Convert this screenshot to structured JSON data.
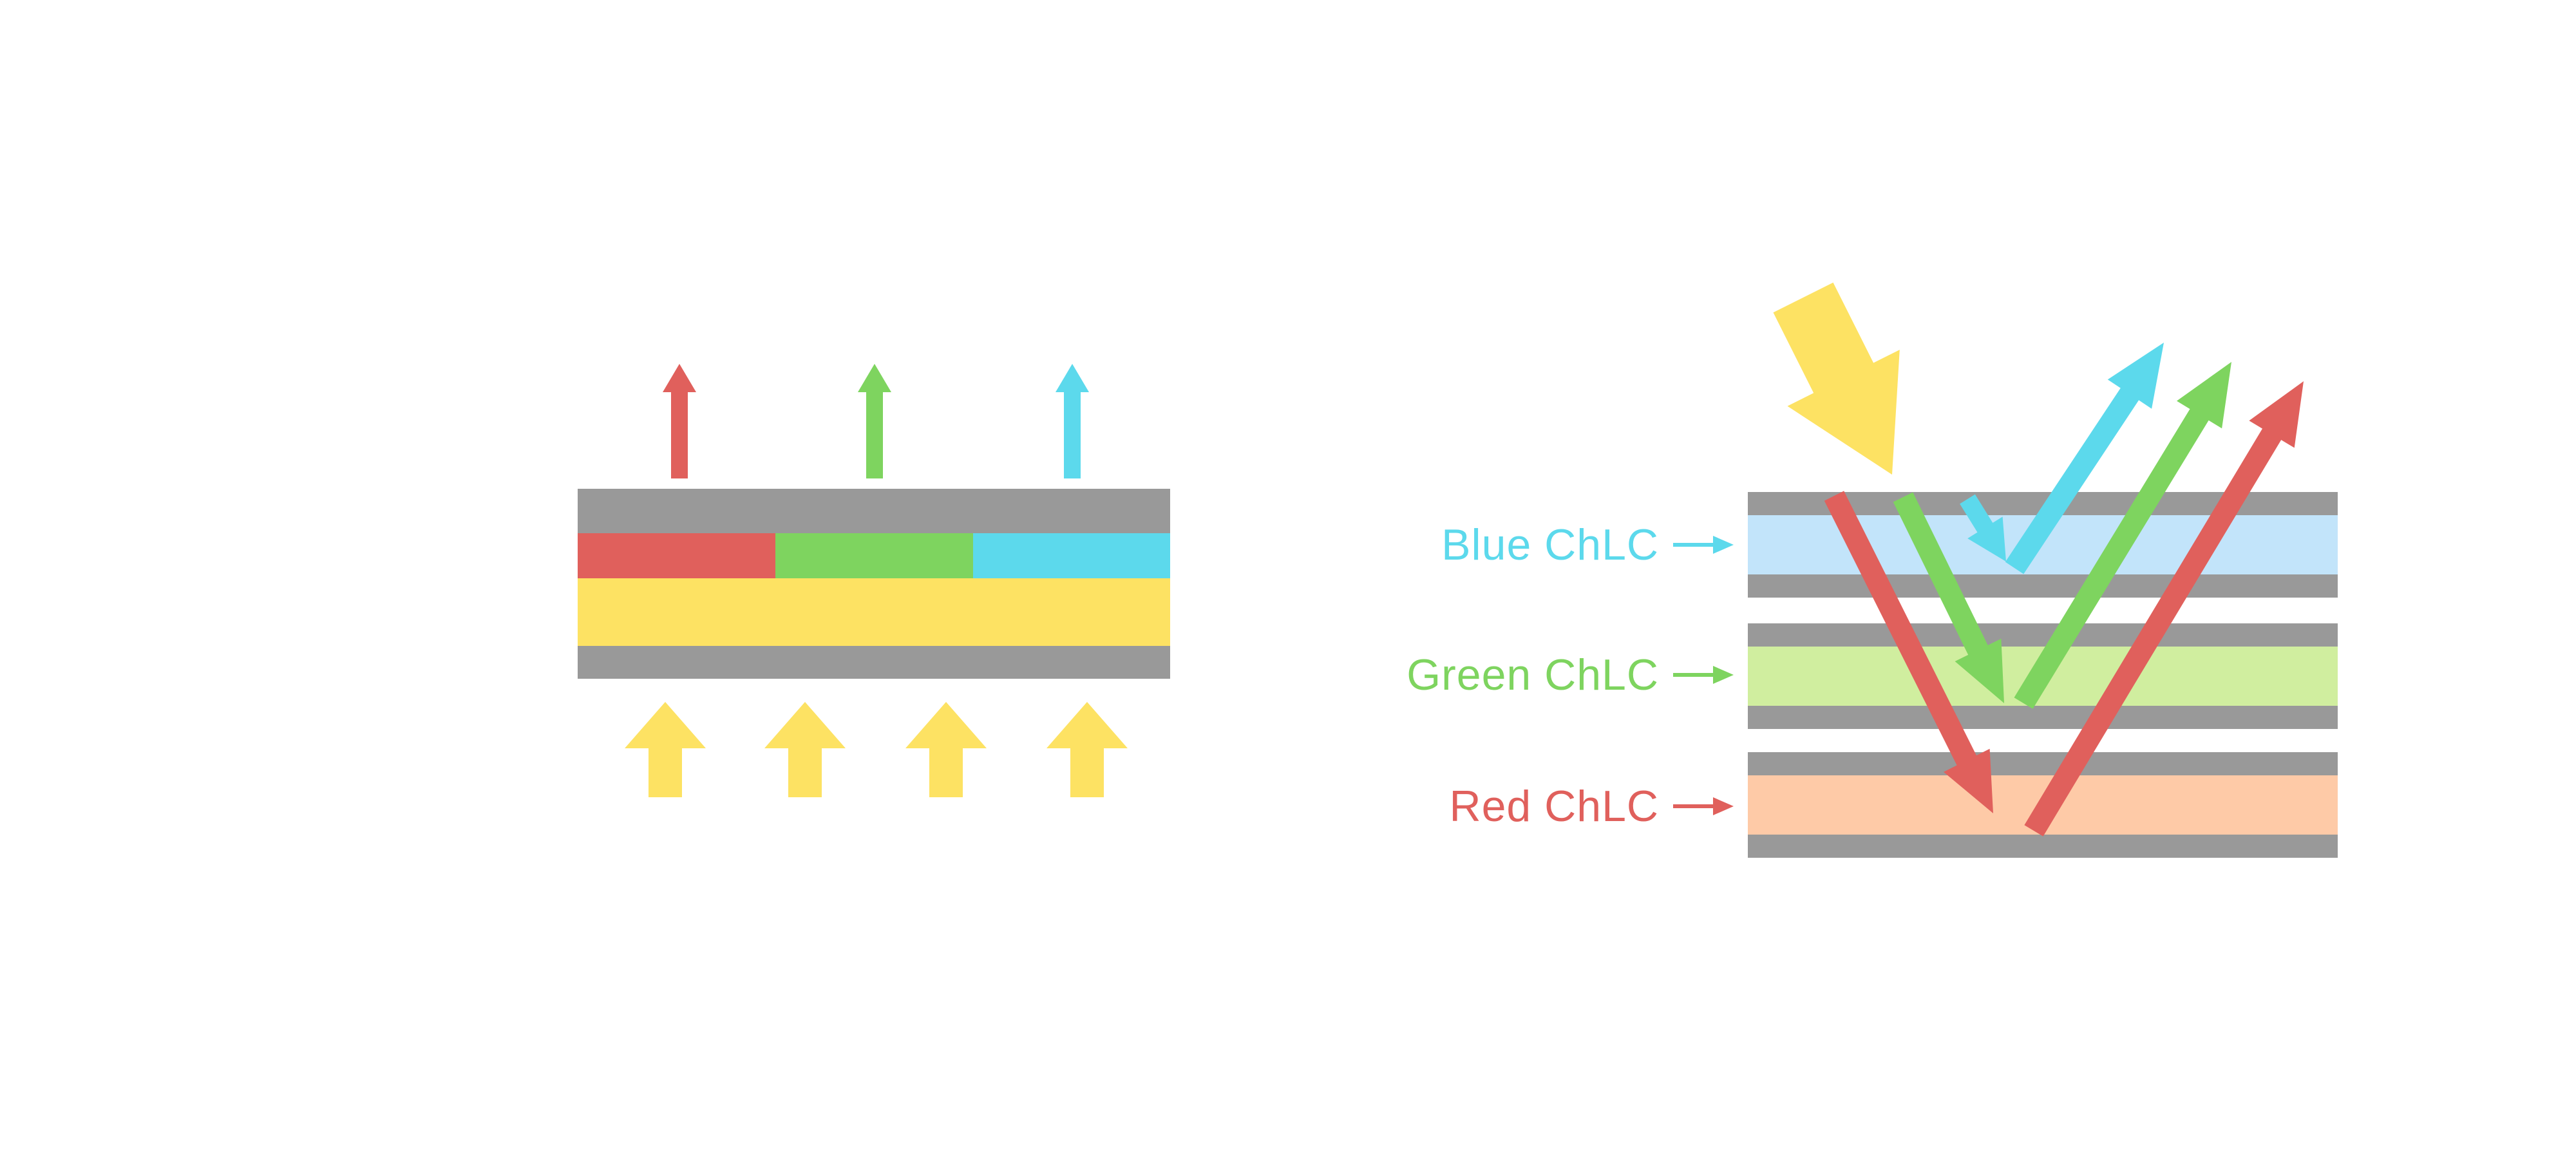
{
  "colors": {
    "red": "#E0605C",
    "green": "#7ED45F",
    "cyan": "#5CD9EC",
    "yellow": "#FDE263",
    "gray": "#999999",
    "light_blue": "#C2E4FA",
    "light_green": "#D0EE9F",
    "light_orange": "#FECAA7",
    "background": "#FFFFFF"
  },
  "left_diagram": {
    "subpixels": [
      "red",
      "green",
      "cyan"
    ],
    "emitted_arrow_colors": [
      "red",
      "green",
      "cyan"
    ],
    "backlight_arrow_count": 4,
    "backlight_arrow_color": "yellow"
  },
  "right_diagram": {
    "incident_light_color": "yellow",
    "labels": [
      {
        "id": "blue",
        "text": "Blue ChLC"
      },
      {
        "id": "green",
        "text": "Green ChLC"
      },
      {
        "id": "red",
        "text": "Red ChLC"
      }
    ],
    "reflected_arrow_colors": [
      "cyan",
      "green",
      "red"
    ]
  }
}
